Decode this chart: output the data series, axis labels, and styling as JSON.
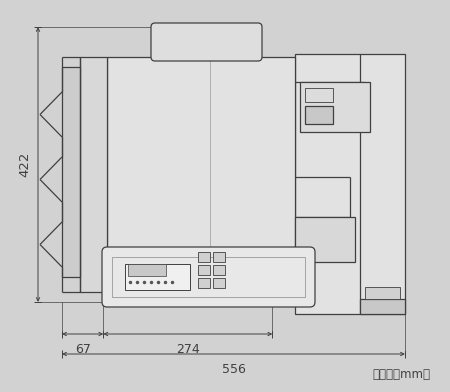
{
  "bg_color": "#d2d2d2",
  "line_color": "#404040",
  "dim_color": "#404040",
  "fig_width": 4.5,
  "fig_height": 3.92,
  "unit_label": "（単位：mm）",
  "dim_422": "422",
  "dim_67": "67",
  "dim_274": "274",
  "dim_556": "556",
  "body_fc": "#e2e2e2",
  "panel_fc": "#e8e8e8",
  "dark_fc": "#c8c8c8"
}
